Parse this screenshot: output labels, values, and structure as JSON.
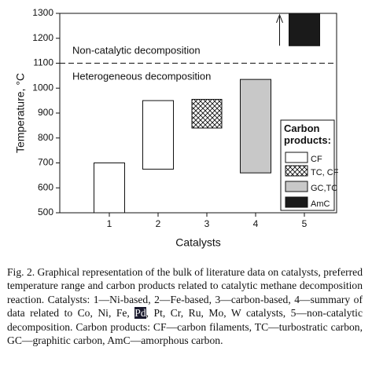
{
  "chart_data": {
    "type": "floating-bar",
    "y_label": "Temperature, °C",
    "x_label": "Catalysts",
    "categories": [
      "1",
      "2",
      "3",
      "4",
      "5"
    ],
    "ylim": [
      500,
      1300
    ],
    "yticks": [
      500,
      600,
      700,
      800,
      900,
      1000,
      1100,
      1200,
      1300
    ],
    "threshold": 1100,
    "annotations": [
      "Non-catalytic decomposition",
      "Heterogeneous decomposition"
    ],
    "legend_title": "Carbon products:",
    "series": [
      {
        "name": "CF",
        "color": "#ffffff",
        "values": [
          [
            500,
            700
          ],
          [
            675,
            950
          ],
          null,
          null,
          null
        ]
      },
      {
        "name": "TC, CF",
        "color": "#ffffff",
        "pattern": "crosshatch",
        "values": [
          null,
          null,
          [
            840,
            955
          ],
          null,
          null
        ]
      },
      {
        "name": "GC,TC",
        "color": "#c8c8c8",
        "values": [
          null,
          null,
          null,
          [
            660,
            1035
          ],
          null
        ]
      },
      {
        "name": "AmC",
        "color": "#1a1a1a",
        "values": [
          null,
          null,
          null,
          null,
          [
            1170,
            1300
          ]
        ]
      }
    ]
  },
  "caption": [
    "Fig. 2. Graphical representation of the bulk of literature data on catalysts, preferred temperature range and carbon products related to catalytic methane decomposition reaction. Catalysts: 1—Ni-based, 2—Fe-based, 3—carbon-based, 4—summary of data related to Co, Ni, Fe, ",
    "Pd",
    ", Pt, Cr, Ru, Mo, W catalysts, 5—non-catalytic decomposition. Carbon products: CF—carbon filaments, TC—turbostratic carbon, GC—graphitic carbon, AmC—amorphous carbon."
  ]
}
